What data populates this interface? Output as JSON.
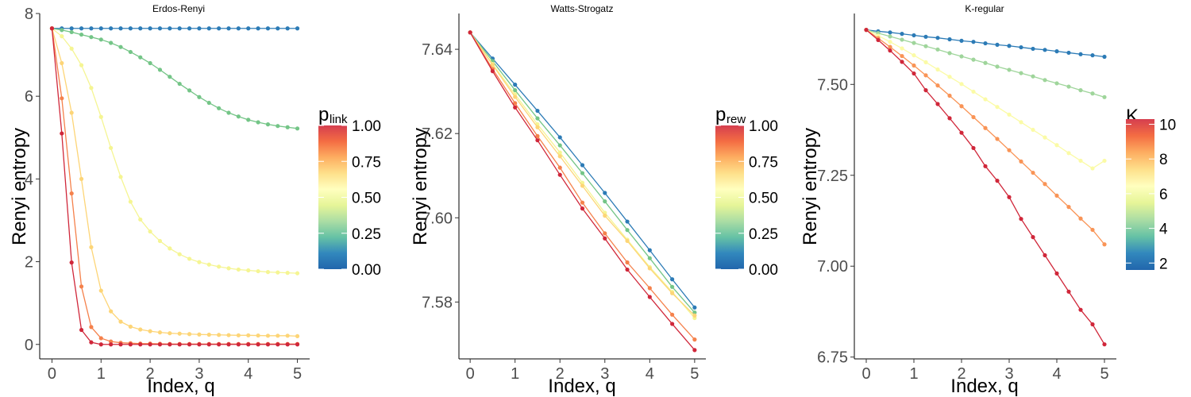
{
  "palette": [
    "#2166ac",
    "#3288bd",
    "#66c2a5",
    "#abdda4",
    "#e6f598",
    "#ffffbf",
    "#fee08b",
    "#fdae61",
    "#f46d43",
    "#d53e4f"
  ],
  "chart_data": [
    {
      "type": "line",
      "title": "Erdos-Renyi",
      "xlabel": "Index, q",
      "ylabel": "Renyi entropy",
      "xlim": [
        -0.25,
        5.25
      ],
      "ylim": [
        -0.35,
        8.0
      ],
      "xticks": [
        0,
        1,
        2,
        3,
        4,
        5
      ],
      "xtick_labels": [
        "0",
        "1",
        "2",
        "3",
        "4",
        "5"
      ],
      "yticks": [
        0,
        2,
        4,
        6,
        8
      ],
      "ytick_labels": [
        "0",
        "2",
        "4",
        "6",
        "8"
      ],
      "grid": false,
      "legend": {
        "title": "p",
        "subscript": "link",
        "range": [
          0,
          1
        ],
        "ticks": [
          0,
          0.25,
          0.5,
          0.75,
          1
        ],
        "tick_labels": [
          "0.00",
          "0.25",
          "0.50",
          "0.75",
          "1.00"
        ]
      },
      "series": [
        {
          "name": "0.00",
          "color": "#2c7bb6",
          "x": [
            0,
            0.2,
            0.4,
            0.6,
            0.8,
            1,
            1.2,
            1.4,
            1.6,
            1.8,
            2,
            2.2,
            2.4,
            2.6,
            2.8,
            3,
            3.2,
            3.4,
            3.6,
            3.8,
            4,
            4.2,
            4.4,
            4.6,
            4.8,
            5
          ],
          "y": [
            7.64,
            7.64,
            7.64,
            7.64,
            7.64,
            7.64,
            7.64,
            7.64,
            7.64,
            7.64,
            7.64,
            7.64,
            7.64,
            7.64,
            7.64,
            7.64,
            7.64,
            7.64,
            7.64,
            7.64,
            7.64,
            7.64,
            7.64,
            7.64,
            7.64,
            7.64
          ]
        },
        {
          "name": "0.30",
          "color": "#74c587",
          "x": [
            0,
            0.2,
            0.4,
            0.6,
            0.8,
            1,
            1.2,
            1.4,
            1.6,
            1.8,
            2,
            2.2,
            2.4,
            2.6,
            2.8,
            3,
            3.2,
            3.4,
            3.6,
            3.8,
            4,
            4.2,
            4.4,
            4.6,
            4.8,
            5
          ],
          "y": [
            7.64,
            7.6,
            7.55,
            7.49,
            7.43,
            7.37,
            7.29,
            7.19,
            7.07,
            6.94,
            6.8,
            6.64,
            6.47,
            6.3,
            6.14,
            5.98,
            5.84,
            5.71,
            5.6,
            5.51,
            5.43,
            5.37,
            5.32,
            5.28,
            5.25,
            5.22
          ]
        },
        {
          "name": "0.55",
          "color": "#f5f593",
          "x": [
            0,
            0.2,
            0.4,
            0.6,
            0.8,
            1,
            1.2,
            1.4,
            1.6,
            1.8,
            2,
            2.2,
            2.4,
            2.6,
            2.8,
            3,
            3.2,
            3.4,
            3.6,
            3.8,
            4,
            4.2,
            4.4,
            4.6,
            4.8,
            5
          ],
          "y": [
            7.64,
            7.45,
            7.15,
            6.75,
            6.2,
            5.5,
            4.75,
            4.05,
            3.45,
            3.02,
            2.73,
            2.5,
            2.32,
            2.18,
            2.07,
            1.99,
            1.93,
            1.88,
            1.84,
            1.81,
            1.79,
            1.77,
            1.75,
            1.74,
            1.73,
            1.72
          ]
        },
        {
          "name": "0.70",
          "color": "#fdd577",
          "x": [
            0,
            0.2,
            0.4,
            0.6,
            0.8,
            1,
            1.2,
            1.4,
            1.6,
            1.8,
            2,
            2.2,
            2.4,
            2.6,
            2.8,
            3,
            3.2,
            3.4,
            3.6,
            3.8,
            4,
            4.2,
            4.4,
            4.6,
            4.8,
            5
          ],
          "y": [
            7.64,
            6.8,
            5.6,
            4.0,
            2.35,
            1.3,
            0.8,
            0.55,
            0.43,
            0.36,
            0.32,
            0.29,
            0.27,
            0.26,
            0.25,
            0.24,
            0.235,
            0.23,
            0.225,
            0.22,
            0.22,
            0.215,
            0.21,
            0.21,
            0.21,
            0.2
          ]
        },
        {
          "name": "0.85",
          "color": "#f5814b",
          "x": [
            0,
            0.2,
            0.4,
            0.6,
            0.8,
            1,
            1.2,
            1.4,
            1.6,
            1.8,
            2,
            2.2,
            2.4,
            2.6,
            2.8,
            3,
            3.2,
            3.4,
            3.6,
            3.8,
            4,
            4.2,
            4.4,
            4.6,
            4.8,
            5
          ],
          "y": [
            7.64,
            5.95,
            3.65,
            1.4,
            0.42,
            0.15,
            0.07,
            0.04,
            0.03,
            0.02,
            0.02,
            0.015,
            0.01,
            0.01,
            0.01,
            0.01,
            0.01,
            0.01,
            0.01,
            0.01,
            0.01,
            0.01,
            0.01,
            0.01,
            0.01,
            0.01
          ]
        },
        {
          "name": "1.00",
          "color": "#d0273a",
          "x": [
            0,
            0.2,
            0.4,
            0.6,
            0.8,
            1,
            1.2,
            1.4,
            1.6,
            1.8,
            2,
            2.2,
            2.4,
            2.6,
            2.8,
            3,
            3.2,
            3.4,
            3.6,
            3.8,
            4,
            4.2,
            4.4,
            4.6,
            4.8,
            5
          ],
          "y": [
            7.64,
            5.1,
            1.98,
            0.35,
            0.05,
            0.0,
            0.0,
            0.0,
            0.0,
            0.0,
            0.0,
            0.0,
            0.0,
            0.0,
            0.0,
            0.0,
            0.0,
            0.0,
            0.0,
            0.0,
            0.0,
            0.0,
            0.0,
            0.0,
            0.0,
            0.0
          ]
        }
      ]
    },
    {
      "type": "line",
      "title": "Watts-Strogatz",
      "xlabel": "Index, q",
      "ylabel": "Renyi entropy",
      "xlim": [
        -0.25,
        5.25
      ],
      "ylim": [
        7.5665,
        7.6485
      ],
      "xticks": [
        0,
        1,
        2,
        3,
        4,
        5
      ],
      "xtick_labels": [
        "0",
        "1",
        "2",
        "3",
        "4",
        "5"
      ],
      "yticks": [
        7.58,
        7.6,
        7.62,
        7.64
      ],
      "ytick_labels": [
        "7.58",
        "7.60",
        "7.62",
        "7.64"
      ],
      "grid": false,
      "legend": {
        "title": "p",
        "subscript": "rew",
        "range": [
          0,
          1
        ],
        "ticks": [
          0,
          0.25,
          0.5,
          0.75,
          1
        ],
        "tick_labels": [
          "0.00",
          "0.25",
          "0.50",
          "0.75",
          "1.00"
        ]
      },
      "series": [
        {
          "name": "0.00",
          "color": "#2c7bb6",
          "x": [
            0,
            0.5,
            1,
            1.5,
            2,
            2.5,
            3,
            3.5,
            4,
            4.5,
            5
          ],
          "y": [
            7.644,
            7.6378,
            7.6316,
            7.6254,
            7.6191,
            7.6125,
            7.6059,
            7.5991,
            7.5923,
            7.5854,
            7.5787
          ]
        },
        {
          "name": "0.30",
          "color": "#74c587",
          "x": [
            0,
            0.5,
            1,
            1.5,
            2,
            2.5,
            3,
            3.5,
            4,
            4.5,
            5
          ],
          "y": [
            7.644,
            7.6372,
            7.6303,
            7.6236,
            7.6172,
            7.6106,
            7.6039,
            7.5971,
            7.5904,
            7.5836,
            7.5775
          ]
        },
        {
          "name": "0.55",
          "color": "#f5f593",
          "x": [
            0,
            0.5,
            1,
            1.5,
            2,
            2.5,
            3,
            3.5,
            4,
            4.5,
            5
          ],
          "y": [
            7.644,
            7.6365,
            7.6293,
            7.6222,
            7.6155,
            7.6083,
            7.6012,
            7.5948,
            7.5883,
            7.5824,
            7.5762
          ]
        },
        {
          "name": "0.70",
          "color": "#fdd577",
          "x": [
            0,
            0.5,
            1,
            1.5,
            2,
            2.5,
            3,
            3.5,
            4,
            4.5,
            5
          ],
          "y": [
            7.644,
            7.6363,
            7.6287,
            7.6215,
            7.6146,
            7.6076,
            7.6005,
            7.5945,
            7.588,
            7.5821,
            7.5768
          ]
        },
        {
          "name": "0.85",
          "color": "#f5814b",
          "x": [
            0,
            0.5,
            1,
            1.5,
            2,
            2.5,
            3,
            3.5,
            4,
            4.5,
            5
          ],
          "y": [
            7.644,
            7.6353,
            7.6272,
            7.6194,
            7.6119,
            7.6036,
            7.5963,
            7.5894,
            7.5833,
            7.577,
            7.5711
          ]
        },
        {
          "name": "1.00",
          "color": "#d0273a",
          "x": [
            0,
            0.5,
            1,
            1.5,
            2,
            2.5,
            3,
            3.5,
            4,
            4.5,
            5
          ],
          "y": [
            7.644,
            7.6348,
            7.6262,
            7.6184,
            7.6102,
            7.6022,
            7.5951,
            7.5877,
            7.5812,
            7.5748,
            7.5686
          ]
        }
      ]
    },
    {
      "type": "line",
      "title": "K-regular",
      "xlabel": "Index, q",
      "ylabel": "Renyi entropy",
      "xlim": [
        -0.25,
        5.25
      ],
      "ylim": [
        6.745,
        7.695
      ],
      "xticks": [
        0,
        1,
        2,
        3,
        4,
        5
      ],
      "xtick_labels": [
        "0",
        "1",
        "2",
        "3",
        "4",
        "5"
      ],
      "yticks": [
        6.75,
        7.0,
        7.25,
        7.5
      ],
      "ytick_labels": [
        "6.75",
        "7.00",
        "7.25",
        "7.50"
      ],
      "grid": false,
      "legend": {
        "title": "K",
        "subscript": "",
        "range": [
          1.6,
          10.3
        ],
        "ticks": [
          2,
          4,
          6,
          8,
          10
        ],
        "tick_labels": [
          "2",
          "4",
          "6",
          "8",
          "10"
        ]
      },
      "series": [
        {
          "name": "2",
          "color": "#2c7bb6",
          "x": [
            0,
            0.25,
            0.5,
            0.75,
            1,
            1.25,
            1.5,
            1.75,
            2,
            2.25,
            2.5,
            2.75,
            3,
            3.25,
            3.5,
            3.75,
            4,
            4.25,
            4.5,
            4.75,
            5
          ],
          "y": [
            7.65,
            7.646,
            7.643,
            7.639,
            7.635,
            7.631,
            7.628,
            7.624,
            7.62,
            7.617,
            7.613,
            7.609,
            7.606,
            7.602,
            7.598,
            7.595,
            7.591,
            7.587,
            7.583,
            7.58,
            7.576
          ]
        },
        {
          "name": "4",
          "color": "#9fd59b",
          "x": [
            0,
            0.25,
            0.5,
            0.75,
            1,
            1.25,
            1.5,
            1.75,
            2,
            2.25,
            2.5,
            2.75,
            3,
            3.25,
            3.5,
            3.75,
            4,
            4.25,
            4.5,
            4.75,
            5
          ],
          "y": [
            7.65,
            7.641,
            7.632,
            7.623,
            7.614,
            7.605,
            7.596,
            7.586,
            7.577,
            7.568,
            7.559,
            7.549,
            7.54,
            7.531,
            7.522,
            7.512,
            7.503,
            7.494,
            7.484,
            7.475,
            7.465
          ]
        },
        {
          "name": "6",
          "color": "#fbfba6",
          "x": [
            0,
            0.25,
            0.5,
            0.75,
            1,
            1.25,
            1.5,
            1.75,
            2,
            2.25,
            2.5,
            2.75,
            3,
            3.25,
            3.5,
            3.75,
            4,
            4.25,
            4.5,
            4.75,
            5
          ],
          "y": [
            7.65,
            7.634,
            7.617,
            7.599,
            7.58,
            7.561,
            7.541,
            7.521,
            7.501,
            7.48,
            7.459,
            7.438,
            7.417,
            7.396,
            7.375,
            7.354,
            7.333,
            7.311,
            7.29,
            7.269,
            7.29
          ]
        },
        {
          "name": "8",
          "color": "#f99456",
          "x": [
            0,
            0.25,
            0.5,
            0.75,
            1,
            1.25,
            1.5,
            1.75,
            2,
            2.25,
            2.5,
            2.75,
            3,
            3.25,
            3.5,
            3.75,
            4,
            4.25,
            4.5,
            4.75,
            5
          ],
          "y": [
            7.65,
            7.627,
            7.603,
            7.578,
            7.552,
            7.525,
            7.497,
            7.469,
            7.44,
            7.41,
            7.38,
            7.35,
            7.319,
            7.288,
            7.257,
            7.226,
            7.194,
            7.163,
            7.131,
            7.1,
            7.06
          ]
        },
        {
          "name": "10",
          "color": "#d0273a",
          "x": [
            0,
            0.25,
            0.5,
            0.75,
            1,
            1.25,
            1.5,
            1.75,
            2,
            2.25,
            2.5,
            2.75,
            3,
            3.25,
            3.5,
            3.75,
            4,
            4.25,
            4.5,
            4.75,
            5
          ],
          "y": [
            7.65,
            7.622,
            7.593,
            7.562,
            7.53,
            7.484,
            7.446,
            7.407,
            7.367,
            7.325,
            7.275,
            7.235,
            7.19,
            7.13,
            7.08,
            7.03,
            6.98,
            6.93,
            6.88,
            6.84,
            6.785
          ]
        }
      ]
    }
  ]
}
